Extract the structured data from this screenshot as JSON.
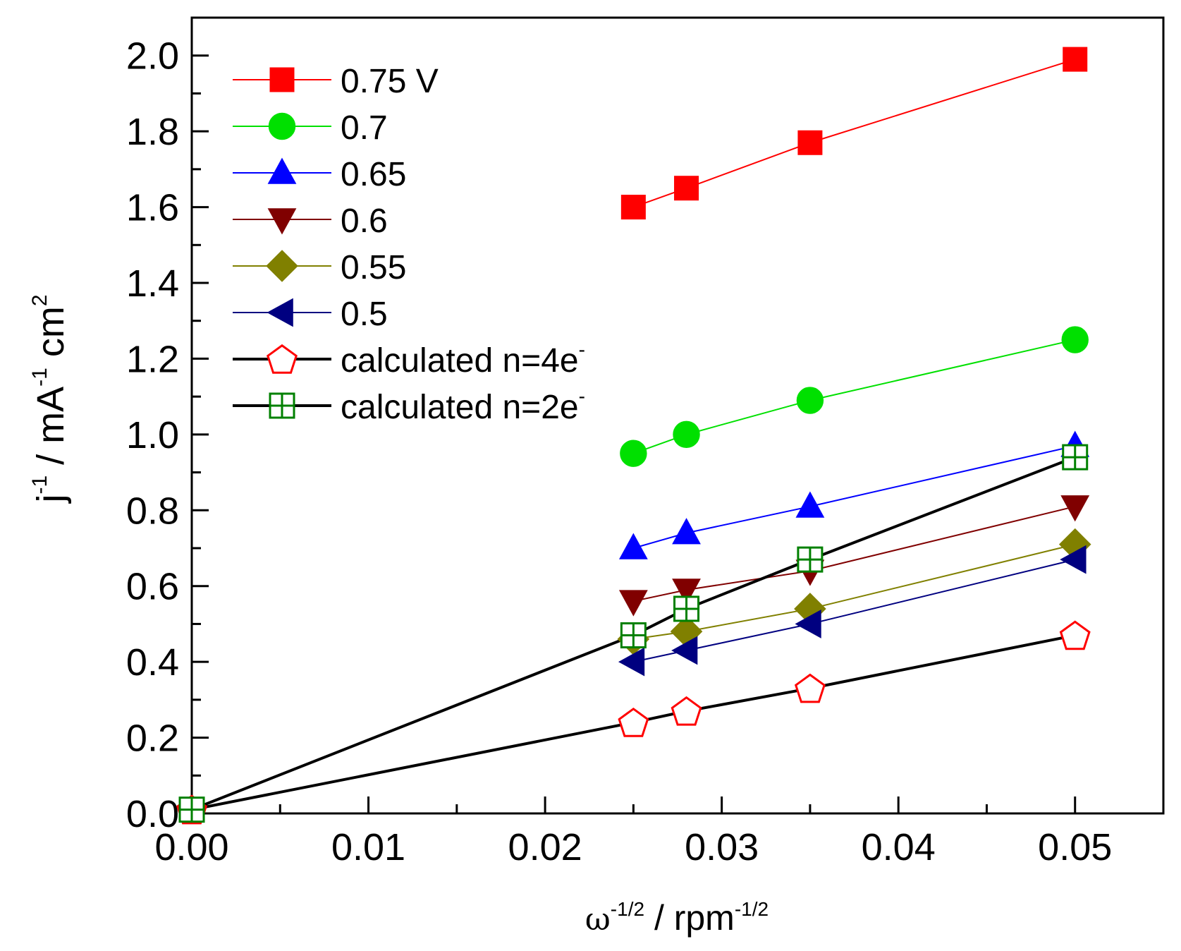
{
  "chart_data": {
    "type": "line",
    "title": "",
    "xlabel": {
      "symbol": "ω",
      "sup1": "-1/2",
      "text": " / rpm",
      "sup2": "-1/2"
    },
    "ylabel": {
      "symbol": "j",
      "sup1": "-1",
      "text1": " / mA",
      "sup2": "-1",
      "text2": " cm",
      "sup3": "2"
    },
    "xlim": [
      0,
      0.055
    ],
    "ylim": [
      0,
      2.1
    ],
    "x_major_ticks": [
      0.0,
      0.01,
      0.02,
      0.03,
      0.04,
      0.05
    ],
    "x_tick_labels": [
      "0.00",
      "0.01",
      "0.02",
      "0.03",
      "0.04",
      "0.05"
    ],
    "x_minor_ticks": [
      0.005,
      0.015,
      0.025,
      0.035,
      0.045,
      0.055
    ],
    "y_major_ticks": [
      0.0,
      0.2,
      0.4,
      0.6,
      0.8,
      1.0,
      1.2,
      1.4,
      1.6,
      1.8,
      2.0
    ],
    "y_tick_labels": [
      "0.0",
      "0.2",
      "0.4",
      "0.6",
      "0.8",
      "1.0",
      "1.2",
      "1.4",
      "1.6",
      "1.8",
      "2.0"
    ],
    "y_minor_ticks": [
      0.1,
      0.3,
      0.5,
      0.7,
      0.9,
      1.1,
      1.3,
      1.5,
      1.7,
      1.9
    ],
    "legend_position": "top-left",
    "grid": false,
    "series": [
      {
        "name": "0.75 V",
        "color": "#ff0000",
        "marker": "square",
        "filled": true,
        "x": [
          0.025,
          0.028,
          0.035,
          0.05
        ],
        "y": [
          1.6,
          1.65,
          1.77,
          1.99
        ]
      },
      {
        "name": "0.7",
        "color": "#00e000",
        "marker": "circle",
        "filled": true,
        "x": [
          0.025,
          0.028,
          0.035,
          0.05
        ],
        "y": [
          0.95,
          1.0,
          1.09,
          1.25
        ]
      },
      {
        "name": "0.65",
        "color": "#0000ff",
        "marker": "triangle-up",
        "filled": true,
        "x": [
          0.025,
          0.028,
          0.035,
          0.05
        ],
        "y": [
          0.7,
          0.74,
          0.81,
          0.97
        ]
      },
      {
        "name": "0.6",
        "color": "#800000",
        "marker": "triangle-down",
        "filled": true,
        "x": [
          0.025,
          0.028,
          0.035,
          0.05
        ],
        "y": [
          0.56,
          0.59,
          0.64,
          0.81
        ]
      },
      {
        "name": "0.55",
        "color": "#808000",
        "marker": "diamond",
        "filled": true,
        "x": [
          0.025,
          0.028,
          0.035,
          0.05
        ],
        "y": [
          0.46,
          0.48,
          0.54,
          0.71
        ]
      },
      {
        "name": "0.5",
        "color": "#000080",
        "marker": "triangle-left",
        "filled": true,
        "x": [
          0.025,
          0.028,
          0.035,
          0.05
        ],
        "y": [
          0.4,
          0.43,
          0.5,
          0.67
        ]
      },
      {
        "name": "calculated n=4e",
        "name_sup": "-",
        "color": "#ff0000",
        "line_color": "#000000",
        "marker": "pentagon",
        "filled": false,
        "x": [
          0.0,
          0.025,
          0.028,
          0.035,
          0.05
        ],
        "y": [
          0.01,
          0.24,
          0.27,
          0.33,
          0.47
        ]
      },
      {
        "name": "calculated n=2e",
        "name_sup": "-",
        "color": "#008000",
        "line_color": "#000000",
        "marker": "square-cross",
        "filled": false,
        "x": [
          0.0,
          0.025,
          0.028,
          0.035,
          0.05
        ],
        "y": [
          0.01,
          0.47,
          0.54,
          0.67,
          0.94
        ]
      }
    ]
  }
}
